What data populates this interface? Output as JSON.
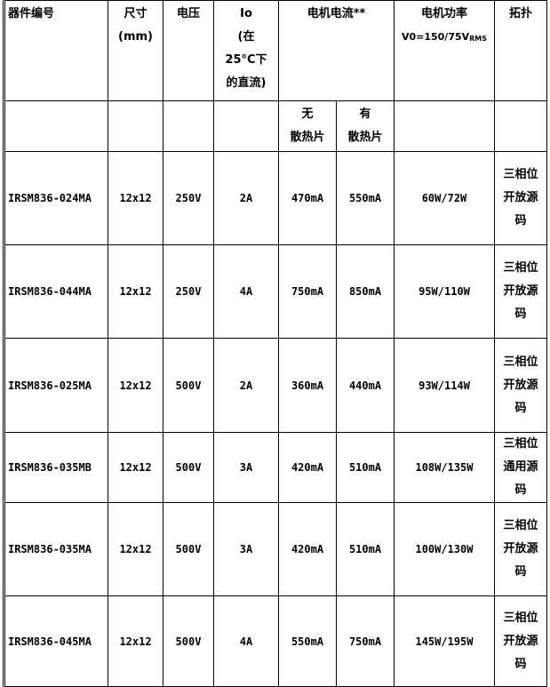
{
  "headers": {
    "part": "器件编号",
    "size": "尺寸",
    "size_unit": "(mm)",
    "voltage": "电压",
    "io": "Io",
    "io_note1": "(在",
    "io_note2": "25°C下",
    "io_note3": "的直流)",
    "motor_current": "电机电流**",
    "motor_power": "电机功率",
    "motor_power_cond": "V0=150/75V",
    "motor_power_sub": "RMS",
    "topology": "拓扑",
    "no_heatsink1": "无",
    "no_heatsink2": "散热片",
    "with_heatsink1": "有",
    "with_heatsink2": "散热片"
  },
  "rows": [
    {
      "part": "IRSM836-024MA",
      "size": "12x12",
      "voltage": "250V",
      "io": "2A",
      "i_no": "470mA",
      "i_with": "550mA",
      "power": "60W/72W",
      "topology": "三相位开放源码"
    },
    {
      "part": "IRSM836-044MA",
      "size": "12x12",
      "voltage": "250V",
      "io": "4A",
      "i_no": "750mA",
      "i_with": "850mA",
      "power": "95W/110W",
      "topology": "三相位开放源码"
    },
    {
      "part": "IRSM836-025MA",
      "size": "12x12",
      "voltage": "500V",
      "io": "2A",
      "i_no": "360mA",
      "i_with": "440mA",
      "power": "93W/114W",
      "topology": "三相位开放源码"
    },
    {
      "part": "IRSM836-035MB",
      "size": "12x12",
      "voltage": "500V",
      "io": "3A",
      "i_no": "420mA",
      "i_with": "510mA",
      "power": "108W/135W",
      "topology": "三相位通用源码"
    },
    {
      "part": "IRSM836-035MA",
      "size": "12x12",
      "voltage": "500V",
      "io": "3A",
      "i_no": "420mA",
      "i_with": "510mA",
      "power": "100W/130W",
      "topology": "三相位开放源码"
    },
    {
      "part": "IRSM836-045MA",
      "size": "12x12",
      "voltage": "500V",
      "io": "4A",
      "i_no": "550mA",
      "i_with": "750mA",
      "power": "145W/195W",
      "topology": "三相位开放源码"
    }
  ]
}
